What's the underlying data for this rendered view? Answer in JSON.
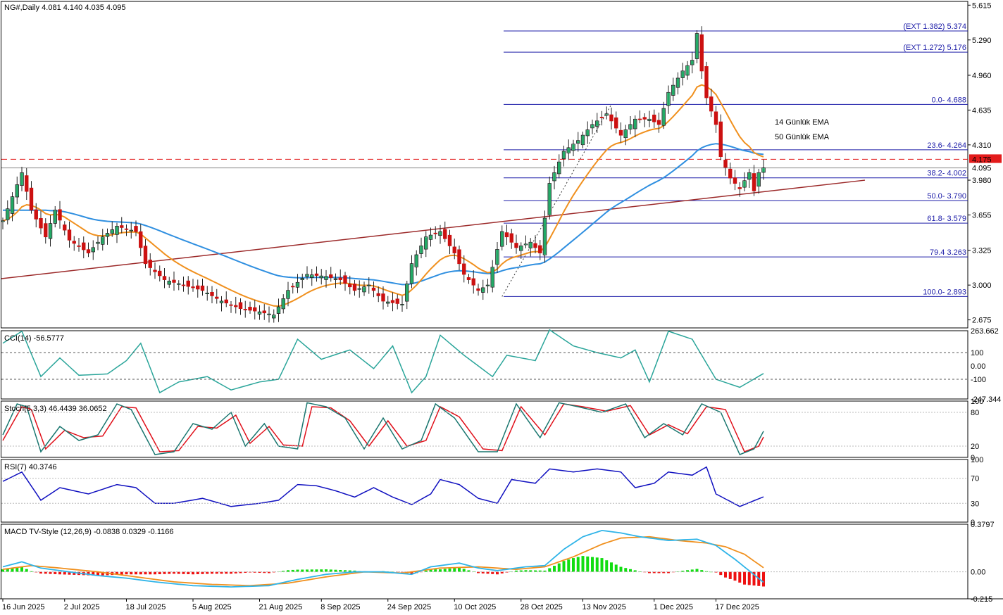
{
  "colors": {
    "bull": "#22aa66",
    "bear": "#cc1111",
    "ema14": "#f0901e",
    "ema50": "#2f8fe0",
    "fib": "#1c1ca8",
    "trend": "#9c2a2a",
    "cci": "#2aa59a",
    "stoch_main": "#19766f",
    "stoch_signal": "#e0101a",
    "rsi": "#1010c0",
    "macd": "#2fb4e8",
    "macd_signal": "#f0901e",
    "hist_pos": "#11dd11",
    "hist_neg": "#ee1111",
    "price_tag": "#e31b1b"
  },
  "main": {
    "header": "NG#,Daily  4.081 4.140 4.035 4.095",
    "price_axis": [
      "5.615",
      "5.290",
      "4.960",
      "4.635",
      "4.310",
      "3.980",
      "3.655",
      "3.325",
      "3.000",
      "2.675"
    ],
    "current_price": "4.095",
    "alert_price": "4.175",
    "legend": {
      "ema14": "14 Günlük EMA",
      "ema50": "50 Günlük EMA"
    },
    "fib_levels": [
      {
        "label": "(EXT 1.382)  5.374",
        "value": 5.374
      },
      {
        "label": "(EXT 1.272)  5.176",
        "value": 5.176
      },
      {
        "label": "0.0- 4.688",
        "value": 4.688
      },
      {
        "label": "23.6- 4.264",
        "value": 4.264
      },
      {
        "label": "38.2- 4.002",
        "value": 4.002
      },
      {
        "label": "50.0- 3.790",
        "value": 3.79
      },
      {
        "label": "61.8- 3.579",
        "value": 3.579
      },
      {
        "label": "79.4 3.263",
        "value": 3.263
      },
      {
        "label": "100.0- 2.893",
        "value": 2.893
      }
    ]
  },
  "x_axis": [
    "16 Jun 2025",
    "2 Jul 2025",
    "18 Jul 2025",
    "5 Aug 2025",
    "21 Aug 2025",
    "8 Sep 2025",
    "24 Sep 2025",
    "10 Oct 2025",
    "28 Oct 2025",
    "13 Nov 2025",
    "1 Dec 2025",
    "17 Dec 2025"
  ],
  "cci": {
    "header": "CCI(14) -56.5777",
    "axis": [
      "263.662",
      "100",
      "0.00",
      "-100",
      "-247.344"
    ]
  },
  "stoch": {
    "header": "Stoch(5,3,3) 46.4439 36.0652",
    "axis": [
      "100",
      "80",
      "20",
      "0"
    ]
  },
  "rsi": {
    "header": "RSI(7) 40.3746",
    "axis": [
      "100",
      "70",
      "30",
      "0"
    ]
  },
  "macd": {
    "header": "MACD TV-Style (12,26,9) -0.0838 0.0329 -0.1166",
    "axis": [
      "0.3797",
      "0.00",
      "-0.215"
    ]
  },
  "chart_data": [
    {
      "type": "candlestick",
      "title": "NG#,Daily",
      "ylim": [
        2.6,
        5.65
      ],
      "close_anchors": [
        {
          "bar": 0,
          "v": 3.6
        },
        {
          "bar": 4,
          "v": 4.05
        },
        {
          "bar": 6,
          "v": 3.7
        },
        {
          "bar": 9,
          "v": 3.45
        },
        {
          "bar": 11,
          "v": 3.7
        },
        {
          "bar": 14,
          "v": 3.42
        },
        {
          "bar": 18,
          "v": 3.3
        },
        {
          "bar": 21,
          "v": 3.45
        },
        {
          "bar": 24,
          "v": 3.55
        },
        {
          "bar": 28,
          "v": 3.5
        },
        {
          "bar": 30,
          "v": 3.2
        },
        {
          "bar": 34,
          "v": 3.05
        },
        {
          "bar": 38,
          "v": 3.0
        },
        {
          "bar": 42,
          "v": 2.95
        },
        {
          "bar": 46,
          "v": 2.85
        },
        {
          "bar": 50,
          "v": 2.78
        },
        {
          "bar": 54,
          "v": 2.75
        },
        {
          "bar": 57,
          "v": 2.72
        },
        {
          "bar": 60,
          "v": 2.95
        },
        {
          "bar": 64,
          "v": 3.1
        },
        {
          "bar": 68,
          "v": 3.08
        },
        {
          "bar": 71,
          "v": 3.05
        },
        {
          "bar": 74,
          "v": 2.95
        },
        {
          "bar": 77,
          "v": 3.0
        },
        {
          "bar": 80,
          "v": 2.85
        },
        {
          "bar": 84,
          "v": 2.82
        },
        {
          "bar": 86,
          "v": 3.2
        },
        {
          "bar": 89,
          "v": 3.45
        },
        {
          "bar": 92,
          "v": 3.5
        },
        {
          "bar": 95,
          "v": 3.3
        },
        {
          "bar": 97,
          "v": 3.1
        },
        {
          "bar": 100,
          "v": 2.95
        },
        {
          "bar": 102,
          "v": 3.0
        },
        {
          "bar": 105,
          "v": 3.5
        },
        {
          "bar": 108,
          "v": 3.35
        },
        {
          "bar": 111,
          "v": 3.4
        },
        {
          "bar": 113,
          "v": 3.3
        },
        {
          "bar": 115,
          "v": 3.95
        },
        {
          "bar": 118,
          "v": 4.25
        },
        {
          "bar": 121,
          "v": 4.35
        },
        {
          "bar": 124,
          "v": 4.5
        },
        {
          "bar": 127,
          "v": 4.6
        },
        {
          "bar": 130,
          "v": 4.4
        },
        {
          "bar": 133,
          "v": 4.55
        },
        {
          "bar": 136,
          "v": 4.55
        },
        {
          "bar": 138,
          "v": 4.5
        },
        {
          "bar": 140,
          "v": 4.8
        },
        {
          "bar": 143,
          "v": 5.0
        },
        {
          "bar": 145,
          "v": 5.1
        },
        {
          "bar": 146,
          "v": 5.35
        },
        {
          "bar": 147,
          "v": 5.0
        },
        {
          "bar": 148,
          "v": 4.75
        },
        {
          "bar": 150,
          "v": 4.5
        },
        {
          "bar": 151,
          "v": 4.2
        },
        {
          "bar": 153,
          "v": 4.0
        },
        {
          "bar": 155,
          "v": 3.9
        },
        {
          "bar": 157,
          "v": 4.05
        },
        {
          "bar": 158,
          "v": 3.88
        },
        {
          "bar": 159,
          "v": 4.05
        },
        {
          "bar": 160,
          "v": 4.095
        }
      ]
    },
    {
      "type": "line",
      "name": "CCI(14)",
      "ylim": [
        -247.344,
        263.662
      ],
      "anchors": [
        [
          0,
          170
        ],
        [
          4,
          260
        ],
        [
          8,
          -80
        ],
        [
          12,
          60
        ],
        [
          16,
          -70
        ],
        [
          22,
          -60
        ],
        [
          26,
          40
        ],
        [
          29,
          170
        ],
        [
          33,
          -200
        ],
        [
          37,
          -120
        ],
        [
          43,
          -80
        ],
        [
          48,
          -180
        ],
        [
          54,
          -120
        ],
        [
          58,
          -100
        ],
        [
          62,
          200
        ],
        [
          67,
          50
        ],
        [
          73,
          120
        ],
        [
          78,
          -20
        ],
        [
          82,
          150
        ],
        [
          86,
          -200
        ],
        [
          89,
          -80
        ],
        [
          92,
          230
        ],
        [
          97,
          80
        ],
        [
          103,
          -80
        ],
        [
          106,
          80
        ],
        [
          112,
          40
        ],
        [
          115,
          270
        ],
        [
          120,
          150
        ],
        [
          125,
          100
        ],
        [
          130,
          60
        ],
        [
          133,
          120
        ],
        [
          136,
          -120
        ],
        [
          140,
          260
        ],
        [
          145,
          200
        ],
        [
          150,
          -100
        ],
        [
          155,
          -160
        ],
        [
          160,
          -56.5777
        ]
      ]
    },
    {
      "type": "line",
      "name": "Stoch main",
      "ylim": [
        0,
        100
      ],
      "anchors": [
        [
          0,
          40
        ],
        [
          3,
          95
        ],
        [
          5,
          90
        ],
        [
          8,
          10
        ],
        [
          12,
          55
        ],
        [
          16,
          30
        ],
        [
          20,
          40
        ],
        [
          24,
          95
        ],
        [
          27,
          85
        ],
        [
          32,
          5
        ],
        [
          36,
          10
        ],
        [
          40,
          60
        ],
        [
          44,
          50
        ],
        [
          48,
          80
        ],
        [
          51,
          20
        ],
        [
          55,
          60
        ],
        [
          58,
          20
        ],
        [
          62,
          15
        ],
        [
          64,
          97
        ],
        [
          68,
          90
        ],
        [
          72,
          70
        ],
        [
          76,
          15
        ],
        [
          80,
          70
        ],
        [
          84,
          15
        ],
        [
          88,
          30
        ],
        [
          91,
          95
        ],
        [
          95,
          70
        ],
        [
          100,
          10
        ],
        [
          104,
          10
        ],
        [
          108,
          95
        ],
        [
          113,
          35
        ],
        [
          117,
          97
        ],
        [
          121,
          90
        ],
        [
          126,
          80
        ],
        [
          131,
          95
        ],
        [
          135,
          35
        ],
        [
          139,
          60
        ],
        [
          143,
          40
        ],
        [
          147,
          95
        ],
        [
          151,
          80
        ],
        [
          155,
          5
        ],
        [
          158,
          15
        ],
        [
          160,
          46.4439
        ]
      ]
    },
    {
      "type": "line",
      "name": "Stoch signal",
      "ylim": [
        0,
        100
      ],
      "anchors": [
        [
          0,
          30
        ],
        [
          4,
          90
        ],
        [
          6,
          85
        ],
        [
          9,
          15
        ],
        [
          13,
          48
        ],
        [
          17,
          35
        ],
        [
          21,
          38
        ],
        [
          25,
          90
        ],
        [
          28,
          88
        ],
        [
          33,
          10
        ],
        [
          37,
          12
        ],
        [
          41,
          55
        ],
        [
          45,
          52
        ],
        [
          49,
          75
        ],
        [
          52,
          25
        ],
        [
          56,
          55
        ],
        [
          59,
          22
        ],
        [
          63,
          20
        ],
        [
          65,
          90
        ],
        [
          69,
          88
        ],
        [
          73,
          65
        ],
        [
          77,
          20
        ],
        [
          81,
          65
        ],
        [
          85,
          20
        ],
        [
          89,
          30
        ],
        [
          92,
          90
        ],
        [
          96,
          72
        ],
        [
          101,
          15
        ],
        [
          105,
          12
        ],
        [
          109,
          90
        ],
        [
          114,
          40
        ],
        [
          118,
          95
        ],
        [
          122,
          90
        ],
        [
          127,
          82
        ],
        [
          132,
          92
        ],
        [
          136,
          40
        ],
        [
          140,
          58
        ],
        [
          144,
          42
        ],
        [
          148,
          90
        ],
        [
          152,
          85
        ],
        [
          156,
          10
        ],
        [
          159,
          20
        ],
        [
          160,
          36.0652
        ]
      ]
    },
    {
      "type": "line",
      "name": "RSI(7)",
      "ylim": [
        0,
        100
      ],
      "anchors": [
        [
          0,
          65
        ],
        [
          4,
          80
        ],
        [
          8,
          35
        ],
        [
          12,
          55
        ],
        [
          18,
          45
        ],
        [
          24,
          60
        ],
        [
          28,
          55
        ],
        [
          32,
          30
        ],
        [
          36,
          30
        ],
        [
          42,
          38
        ],
        [
          48,
          25
        ],
        [
          54,
          30
        ],
        [
          58,
          35
        ],
        [
          62,
          60
        ],
        [
          66,
          58
        ],
        [
          70,
          50
        ],
        [
          74,
          40
        ],
        [
          78,
          55
        ],
        [
          82,
          40
        ],
        [
          86,
          28
        ],
        [
          90,
          45
        ],
        [
          92,
          68
        ],
        [
          96,
          60
        ],
        [
          100,
          38
        ],
        [
          104,
          30
        ],
        [
          107,
          68
        ],
        [
          112,
          62
        ],
        [
          115,
          85
        ],
        [
          120,
          80
        ],
        [
          125,
          85
        ],
        [
          130,
          80
        ],
        [
          133,
          55
        ],
        [
          137,
          62
        ],
        [
          140,
          80
        ],
        [
          145,
          75
        ],
        [
          148,
          88
        ],
        [
          150,
          45
        ],
        [
          155,
          25
        ],
        [
          160,
          40.3746
        ]
      ]
    },
    {
      "type": "line",
      "name": "MACD",
      "ylim": [
        -0.215,
        0.3797
      ],
      "anchors": [
        [
          0,
          0.04
        ],
        [
          4,
          0.08
        ],
        [
          8,
          0.03
        ],
        [
          14,
          0.0
        ],
        [
          20,
          -0.03
        ],
        [
          26,
          -0.05
        ],
        [
          32,
          -0.08
        ],
        [
          40,
          -0.11
        ],
        [
          48,
          -0.12
        ],
        [
          56,
          -0.11
        ],
        [
          62,
          -0.06
        ],
        [
          68,
          -0.02
        ],
        [
          74,
          0.0
        ],
        [
          80,
          0.0
        ],
        [
          86,
          -0.02
        ],
        [
          90,
          0.04
        ],
        [
          96,
          0.07
        ],
        [
          100,
          0.03
        ],
        [
          104,
          0.01
        ],
        [
          110,
          0.04
        ],
        [
          114,
          0.05
        ],
        [
          118,
          0.18
        ],
        [
          122,
          0.28
        ],
        [
          126,
          0.33
        ],
        [
          130,
          0.31
        ],
        [
          134,
          0.28
        ],
        [
          140,
          0.25
        ],
        [
          146,
          0.26
        ],
        [
          150,
          0.21
        ],
        [
          154,
          0.1
        ],
        [
          160,
          -0.0838
        ]
      ]
    },
    {
      "type": "line",
      "name": "MACD signal",
      "ylim": [
        -0.215,
        0.3797
      ],
      "anchors": [
        [
          0,
          0.02
        ],
        [
          6,
          0.05
        ],
        [
          12,
          0.03
        ],
        [
          20,
          0.0
        ],
        [
          28,
          -0.04
        ],
        [
          36,
          -0.08
        ],
        [
          44,
          -0.1
        ],
        [
          52,
          -0.11
        ],
        [
          60,
          -0.09
        ],
        [
          68,
          -0.04
        ],
        [
          76,
          0.0
        ],
        [
          84,
          -0.01
        ],
        [
          92,
          0.03
        ],
        [
          100,
          0.04
        ],
        [
          108,
          0.02
        ],
        [
          114,
          0.04
        ],
        [
          120,
          0.12
        ],
        [
          126,
          0.22
        ],
        [
          130,
          0.27
        ],
        [
          136,
          0.28
        ],
        [
          142,
          0.25
        ],
        [
          148,
          0.23
        ],
        [
          152,
          0.2
        ],
        [
          156,
          0.14
        ],
        [
          160,
          0.0329
        ]
      ]
    }
  ]
}
